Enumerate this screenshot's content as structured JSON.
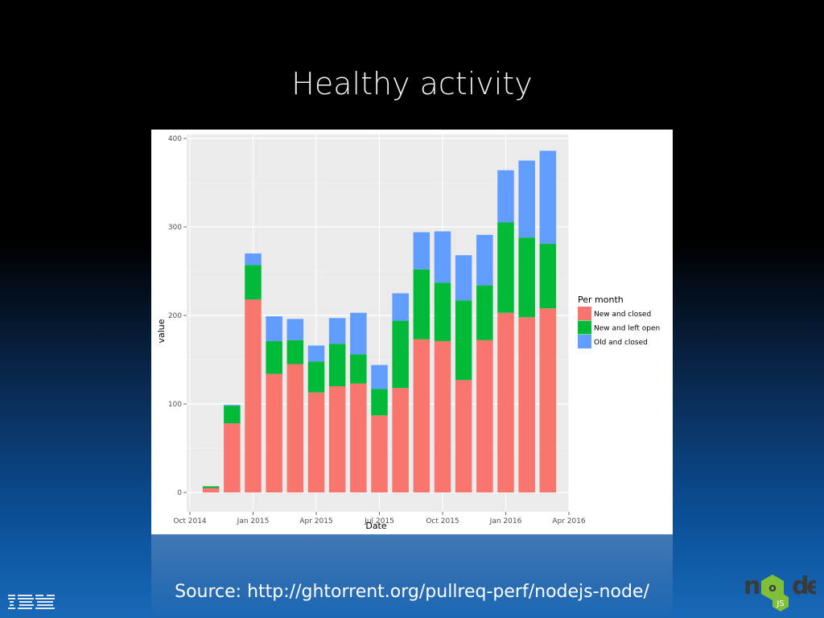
{
  "slide": {
    "title": "Healthy activity",
    "source": "Source: http://ghtorrent.org/pullreq-perf/nodejs-node/"
  },
  "logos": {
    "left": "IBM",
    "right": "node"
  },
  "chart_data": {
    "type": "bar",
    "stacked": true,
    "xlabel": "Date",
    "ylabel": "value",
    "ylim": [
      0,
      400
    ],
    "yticks": [
      0,
      100,
      200,
      300,
      400
    ],
    "x_ticks": [
      "Oct 2014",
      "Jan 2015",
      "Apr 2015",
      "Jul 2015",
      "Oct 2015",
      "Jan 2016",
      "Apr 2016"
    ],
    "x": [
      "2014-11",
      "2014-12",
      "2015-01",
      "2015-02",
      "2015-03",
      "2015-04",
      "2015-05",
      "2015-06",
      "2015-07",
      "2015-08",
      "2015-09",
      "2015-10",
      "2015-11",
      "2015-12",
      "2016-01",
      "2016-02",
      "2016-03"
    ],
    "legend_title": "Per month",
    "legend_position": "right",
    "grid": true,
    "series": [
      {
        "name": "New and closed",
        "color": "#F8766D",
        "values": [
          5,
          78,
          218,
          134,
          145,
          113,
          120,
          123,
          87,
          118,
          173,
          171,
          127,
          172,
          203,
          198,
          208
        ]
      },
      {
        "name": "New and left open",
        "color": "#00BA38",
        "values": [
          2,
          20,
          39,
          37,
          27,
          35,
          48,
          33,
          30,
          76,
          79,
          66,
          90,
          62,
          102,
          90,
          73
        ]
      },
      {
        "name": "Old and closed",
        "color": "#619CFF",
        "values": [
          0,
          1,
          13,
          28,
          24,
          18,
          29,
          47,
          27,
          31,
          42,
          58,
          51,
          57,
          59,
          87,
          105
        ]
      }
    ]
  }
}
